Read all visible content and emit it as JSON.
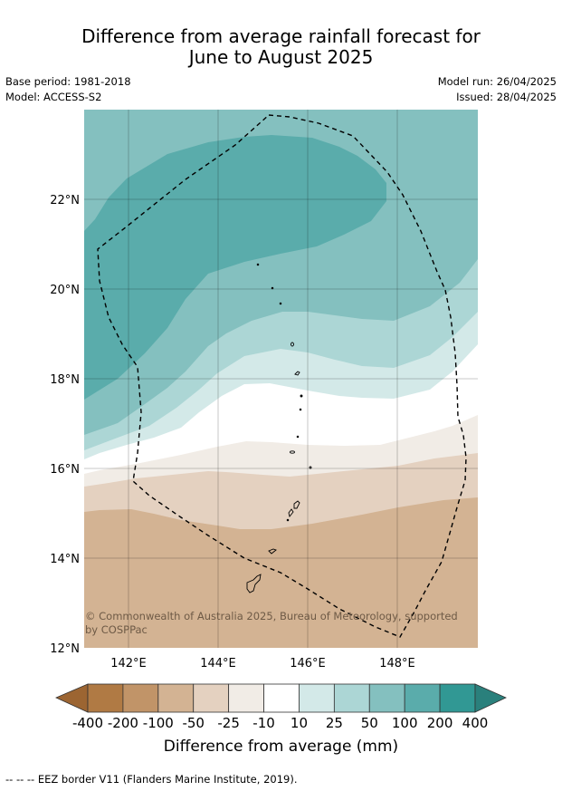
{
  "title": {
    "line1": "Difference from average rainfall forecast for",
    "line2": "June to August 2025"
  },
  "meta": {
    "base_period": "Base period: 1981-2018",
    "model": "Model: ACCESS-S2",
    "model_run": "Model run: 26/04/2025",
    "issued": "Issued: 28/04/2025"
  },
  "map": {
    "lat_labels": [
      "22°N",
      "20°N",
      "18°N",
      "16°N",
      "14°N",
      "12°N"
    ],
    "lon_labels": [
      "142°E",
      "144°E",
      "146°E",
      "148°E"
    ],
    "copyright_line1": "© Commonwealth of Australia 2025, Bureau of Meteorology, supported",
    "copyright_line2": "by COSPPac",
    "colors": {
      "c_100_200": "#5aacab",
      "c_50_100": "#84c0bf",
      "c_25_50": "#acd6d5",
      "c_10_25": "#d3e9e8",
      "c_neutral": "#ffffff",
      "c_m25_m10": "#f1ece6",
      "c_m50_m25": "#e4d1c0",
      "c_m100_m50": "#d3b393"
    }
  },
  "colorbar": {
    "labels": [
      "-400",
      "-200",
      "-100",
      "-50",
      "-25",
      "-10",
      "10",
      "25",
      "50",
      "100",
      "200",
      "400"
    ],
    "colors": [
      "#b07a44",
      "#c19468",
      "#d3b393",
      "#e4d1c0",
      "#f1ece6",
      "#ffffff",
      "#d3e9e8",
      "#acd6d5",
      "#84c0bf",
      "#5aacab",
      "#319894"
    ],
    "low_extend_color": "#9c6532",
    "high_extend_color": "#2a807c",
    "title": "Difference from average (mm)"
  },
  "footnote": "--  --  -- EEZ border V11 (Flanders Marine Institute, 2019)."
}
